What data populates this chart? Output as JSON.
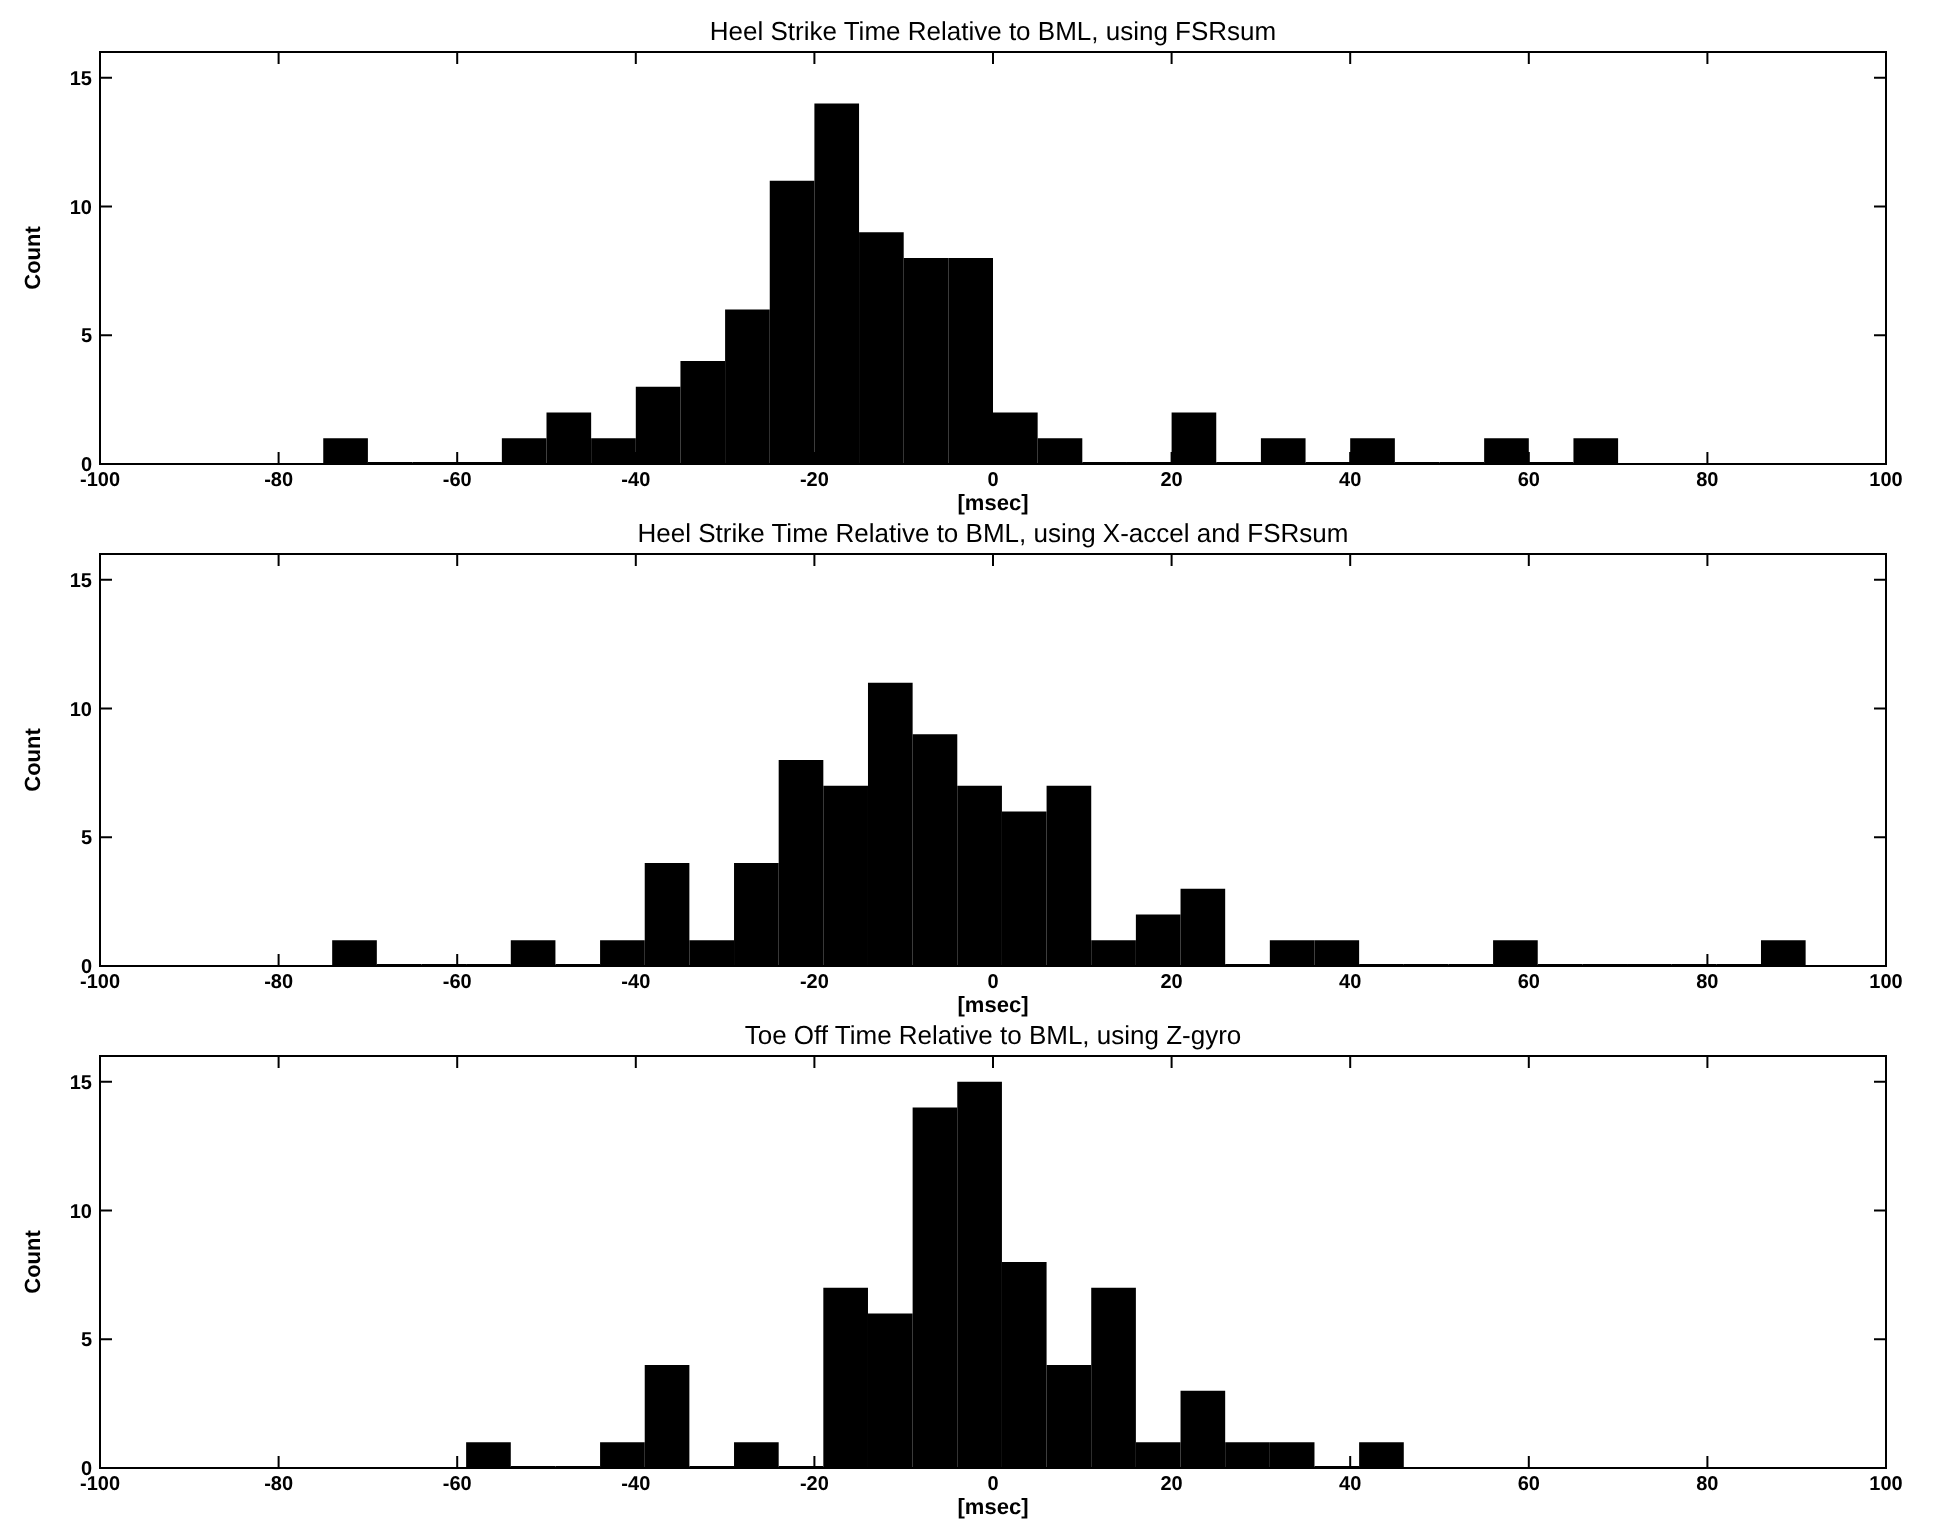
{
  "chart_data": [
    {
      "type": "histogram",
      "title": "Heel Strike Time Relative to BML, using FSRsum",
      "xlabel": "[msec]",
      "ylabel": "Count",
      "color": "#000000",
      "xlim": [
        -100,
        100
      ],
      "xticks": [
        -100,
        -80,
        -60,
        -40,
        -20,
        0,
        20,
        40,
        60,
        80,
        100
      ],
      "ylim": [
        0,
        16
      ],
      "yticks": [
        0,
        5,
        10,
        15
      ],
      "bins": [
        -75,
        -70,
        -65,
        -60,
        -55,
        -50,
        -45,
        -40,
        -35,
        -30,
        -25,
        -20,
        -15,
        -10,
        -5,
        0,
        5,
        10,
        15,
        20,
        25,
        30,
        35,
        40,
        45,
        50,
        55,
        60,
        65,
        70
      ],
      "values": [
        1,
        0,
        0,
        0,
        1,
        2,
        1,
        3,
        4,
        6,
        11,
        14,
        9,
        8,
        8,
        2,
        1,
        0,
        0,
        2,
        0,
        1,
        0,
        1,
        0,
        0,
        1,
        0,
        1
      ]
    },
    {
      "type": "histogram",
      "title": "Heel Strike Time Relative to BML, using X-accel and FSRsum",
      "xlabel": "[msec]",
      "ylabel": "Count",
      "color": "#000000",
      "xlim": [
        -100,
        100
      ],
      "xticks": [
        -100,
        -80,
        -60,
        -40,
        -20,
        0,
        20,
        40,
        60,
        80,
        100
      ],
      "ylim": [
        0,
        16
      ],
      "yticks": [
        0,
        5,
        10,
        15
      ],
      "bins": [
        -74,
        -69,
        -64,
        -59,
        -54,
        -49,
        -44,
        -39,
        -34,
        -29,
        -24,
        -19,
        -14,
        -9,
        -4,
        1,
        6,
        11,
        16,
        21,
        26,
        31,
        36,
        41,
        46,
        51,
        56,
        61,
        66,
        71,
        76,
        81,
        86,
        91
      ],
      "values": [
        1,
        0,
        0,
        0,
        1,
        0,
        1,
        4,
        1,
        4,
        8,
        7,
        11,
        9,
        7,
        6,
        7,
        1,
        2,
        3,
        0,
        1,
        1,
        0,
        0,
        0,
        1,
        0,
        0,
        0,
        0,
        0,
        1
      ]
    },
    {
      "type": "histogram",
      "title": "Toe Off Time Relative to BML, using Z-gyro",
      "xlabel": "[msec]",
      "ylabel": "Count",
      "color": "#000000",
      "xlim": [
        -100,
        100
      ],
      "xticks": [
        -100,
        -80,
        -60,
        -40,
        -20,
        0,
        20,
        40,
        60,
        80,
        100
      ],
      "ylim": [
        0,
        16
      ],
      "yticks": [
        0,
        5,
        10,
        15
      ],
      "bins": [
        -59,
        -54,
        -49,
        -44,
        -39,
        -34,
        -29,
        -24,
        -19,
        -14,
        -9,
        -4,
        1,
        6,
        11,
        16,
        21,
        26,
        31,
        36,
        41,
        46
      ],
      "values": [
        1,
        0,
        0,
        1,
        4,
        0,
        1,
        0,
        7,
        6,
        14,
        15,
        8,
        4,
        7,
        1,
        3,
        1,
        1,
        0,
        1
      ]
    }
  ]
}
